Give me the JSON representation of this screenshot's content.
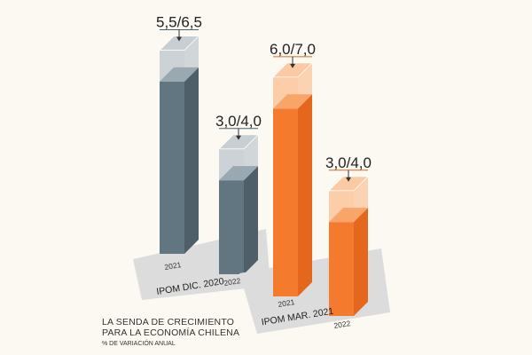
{
  "chart_data": {
    "type": "bar",
    "title": "LA SENDA DE CRECIMIENTO",
    "title_line2": "PARA LA ECONOMÍA CHILENA",
    "subtitle": "% DE VARIACIÓN ANUAL",
    "style": "3d-range-bars",
    "groups": [
      {
        "name": "IPOM DIC. 2020",
        "color_side": "#4e5f6a",
        "color_front": "#627682",
        "color_top": "#9aa8b1",
        "color_range": "#c3cbd0",
        "bars": [
          {
            "category": "2021",
            "low": 5.5,
            "high": 6.5,
            "label": "5,5/6,5"
          },
          {
            "category": "2022",
            "low": 3.0,
            "high": 4.0,
            "label": "3,0/4,0"
          }
        ]
      },
      {
        "name": "IPOM MAR. 2021",
        "color_side": "#e5661d",
        "color_front": "#f47b2e",
        "color_top": "#f9a56a",
        "color_range": "#fcc69c",
        "bars": [
          {
            "category": "2021",
            "low": 6.0,
            "high": 7.0,
            "label": "6,0/7,0"
          },
          {
            "category": "2022",
            "low": 3.0,
            "high": 4.0,
            "label": "3,0/4,0"
          }
        ]
      }
    ],
    "ylim": [
      0,
      7.5
    ]
  }
}
